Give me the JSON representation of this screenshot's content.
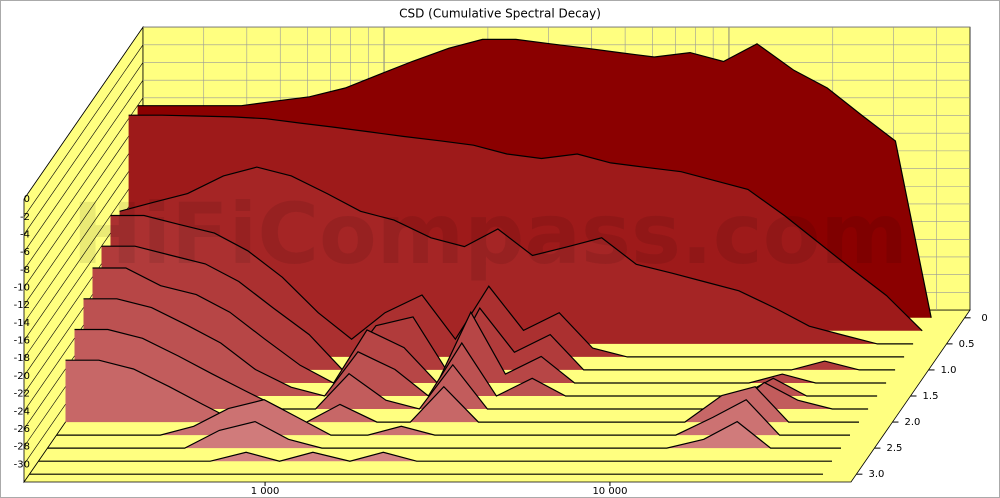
{
  "chart_data": {
    "type": "waterfall",
    "title": "CSD (Cumulative Spectral Decay)",
    "watermark": "HiFiCompass.com",
    "frequencies": [
      200,
      250,
      315,
      400,
      500,
      630,
      800,
      1000,
      1250,
      1600,
      2000,
      2500,
      3150,
      4000,
      5000,
      6300,
      8000,
      10000,
      12500,
      16000,
      20000,
      25000,
      31500,
      40000
    ],
    "xlim": [
      200,
      50000
    ],
    "xlog": true,
    "xticks": [
      {
        "value": 1000,
        "label": "1 000"
      },
      {
        "value": 10000,
        "label": "10 000"
      }
    ],
    "ylim": [
      -32,
      0
    ],
    "yticks": [
      0,
      -2,
      -4,
      -6,
      -8,
      -10,
      -12,
      -14,
      -16,
      -18,
      -20,
      -22,
      -24,
      -26,
      -28,
      -30
    ],
    "tlim": [
      -0.15,
      3.15
    ],
    "tticks": [
      0,
      0.5,
      {
        "value": 1,
        "label": "1.0"
      },
      1.5,
      {
        "value": 2,
        "label": "2.0"
      },
      2.5,
      {
        "value": 3,
        "label": "3.0"
      }
    ],
    "grid": true,
    "wall_color": "#ffff80",
    "series": [
      {
        "time": 0,
        "color": "#8b0000",
        "values": [
          -8,
          -8,
          -8,
          -8,
          -7.5,
          -7,
          -6,
          -4.5,
          -3,
          -1.5,
          -0.5,
          -0.5,
          -1,
          -1.5,
          -2,
          -2.5,
          -2,
          -3,
          -1,
          -4,
          -6,
          -9,
          -12,
          -32
        ]
      },
      {
        "time": 0.25,
        "color": "#9e1a1a",
        "values": [
          -7.6,
          -7.6,
          -7.7,
          -7.8,
          -8,
          -8.5,
          -9,
          -9.5,
          -10,
          -10.5,
          -11,
          -12,
          -12.5,
          -12,
          -13,
          -13.5,
          -14,
          -15,
          -16,
          -19,
          -22,
          -25,
          -28,
          -32
        ]
      },
      {
        "time": 0.5,
        "color": "#a52525",
        "values": [
          -17,
          -16,
          -15,
          -13,
          -12,
          -13,
          -15,
          -17,
          -18,
          -20,
          -21,
          -19,
          -22,
          -21,
          -20,
          -23,
          -24,
          -25,
          -26,
          -28,
          -30,
          -31,
          -32,
          -32
        ]
      },
      {
        "time": 0.75,
        "color": "#ab3030",
        "values": [
          -16,
          -16,
          -17,
          -18,
          -20,
          -23,
          -27,
          -30,
          -27,
          -25,
          -30,
          -24,
          -29,
          -27,
          -31,
          -32,
          -32,
          -32,
          -32,
          -32,
          -32,
          -32,
          -32,
          -32
        ]
      },
      {
        "time": 1,
        "color": "#b13b3b",
        "values": [
          -18,
          -18,
          -19,
          -20,
          -22,
          -25,
          -28,
          -32,
          -27,
          -26,
          -32,
          -25,
          -30,
          -28,
          -32,
          -32,
          -32,
          -32,
          -32,
          -32,
          -32,
          -31,
          -32,
          -32
        ]
      },
      {
        "time": 1.25,
        "color": "#b74646",
        "values": [
          -19,
          -19,
          -21,
          -22,
          -24,
          -27,
          -30,
          -32,
          -26,
          -28,
          -32,
          -24,
          -31,
          -29,
          -32,
          -32,
          -32,
          -32,
          -32,
          -32,
          -31,
          -32,
          -32,
          -32
        ]
      },
      {
        "time": 1.5,
        "color": "#bc5151",
        "values": [
          -21,
          -21,
          -22,
          -24,
          -26,
          -29,
          -31,
          -32,
          -27,
          -29,
          -32,
          -26,
          -32,
          -30,
          -32,
          -32,
          -32,
          -32,
          -32,
          -32,
          -30,
          -32,
          -32,
          -32
        ]
      },
      {
        "time": 1.75,
        "color": "#c25c5c",
        "values": [
          -23,
          -23,
          -24,
          -26,
          -28,
          -30,
          -32,
          -32,
          -28,
          -31,
          -32,
          -27,
          -32,
          -32,
          -32,
          -32,
          -32,
          -32,
          -32,
          -32,
          -29,
          -31,
          -32,
          -32
        ]
      },
      {
        "time": 2,
        "color": "#c76767",
        "values": [
          -25,
          -25,
          -26,
          -28,
          -30,
          -32,
          -32,
          -32,
          -30,
          -32,
          -32,
          -28,
          -32,
          -32,
          -32,
          -32,
          -32,
          -32,
          -32,
          -29,
          -28,
          -32,
          -32,
          -32
        ]
      },
      {
        "time": 2.25,
        "color": "#cc7272",
        "values": [
          -32,
          -32,
          -32,
          -32,
          -31,
          -29,
          -28,
          -30,
          -32,
          -32,
          -31,
          -32,
          -32,
          -32,
          -32,
          -32,
          -32,
          -32,
          -32,
          -30,
          -28,
          -32,
          -32,
          -32
        ]
      },
      {
        "time": 2.5,
        "color": "#d07b7b",
        "values": [
          -32,
          -32,
          -32,
          -32,
          -32,
          -30,
          -29,
          -31,
          -32,
          -32,
          -32,
          -32,
          -32,
          -32,
          -32,
          -32,
          -32,
          -32,
          -32,
          -31,
          -29,
          -32,
          -32,
          -32
        ]
      },
      {
        "time": 2.75,
        "color": "#d48383",
        "values": [
          -32,
          -32,
          -32,
          -32,
          -32,
          -32,
          -31,
          -32,
          -31,
          -32,
          -31,
          -32,
          -32,
          -32,
          -32,
          -32,
          -32,
          -32,
          -32,
          -32,
          -32,
          -32,
          -32,
          -32
        ]
      },
      {
        "time": 3,
        "color": "#d98c8c",
        "values": [
          -32,
          -32,
          -32,
          -32,
          -32,
          -32,
          -32,
          -32,
          -32,
          -32,
          -32,
          -32,
          -32,
          -32,
          -32,
          -32,
          -32,
          -32,
          -32,
          -32,
          -32,
          -32,
          -32,
          -32
        ]
      }
    ]
  }
}
